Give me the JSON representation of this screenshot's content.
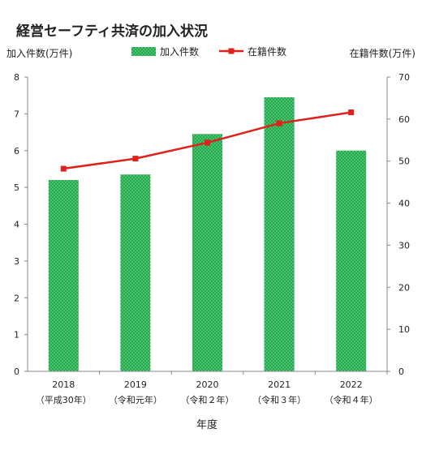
{
  "chart_data": {
    "type": "bar",
    "title": "経営セーフティ共済の加入状況",
    "xlabel": "年度",
    "categories": [
      "2018",
      "2019",
      "2020",
      "2021",
      "2022"
    ],
    "category_sublabels": [
      "（平成30年）",
      "（令和元年）",
      "（令和２年）",
      "（令和３年）",
      "（令和４年）"
    ],
    "y_left": {
      "label": "加入件数(万件)",
      "ylim": [
        0,
        8
      ],
      "ticks": [
        0,
        1,
        2,
        3,
        4,
        5,
        6,
        7,
        8
      ]
    },
    "y_right": {
      "label": "在籍件数(万件)",
      "ylim": [
        0,
        70
      ],
      "ticks": [
        0,
        10,
        20,
        30,
        40,
        50,
        60,
        70
      ]
    },
    "series": [
      {
        "name": "加入件数",
        "type": "bar",
        "axis": "left",
        "color": "#1faa4a",
        "values": [
          5.2,
          5.35,
          6.45,
          7.45,
          6.0
        ]
      },
      {
        "name": "在籍件数",
        "type": "line",
        "axis": "right",
        "color": "#e0201b",
        "values": [
          48.2,
          50.6,
          54.4,
          59.0,
          61.6
        ]
      }
    ],
    "legend_position": "top",
    "grid": false
  }
}
